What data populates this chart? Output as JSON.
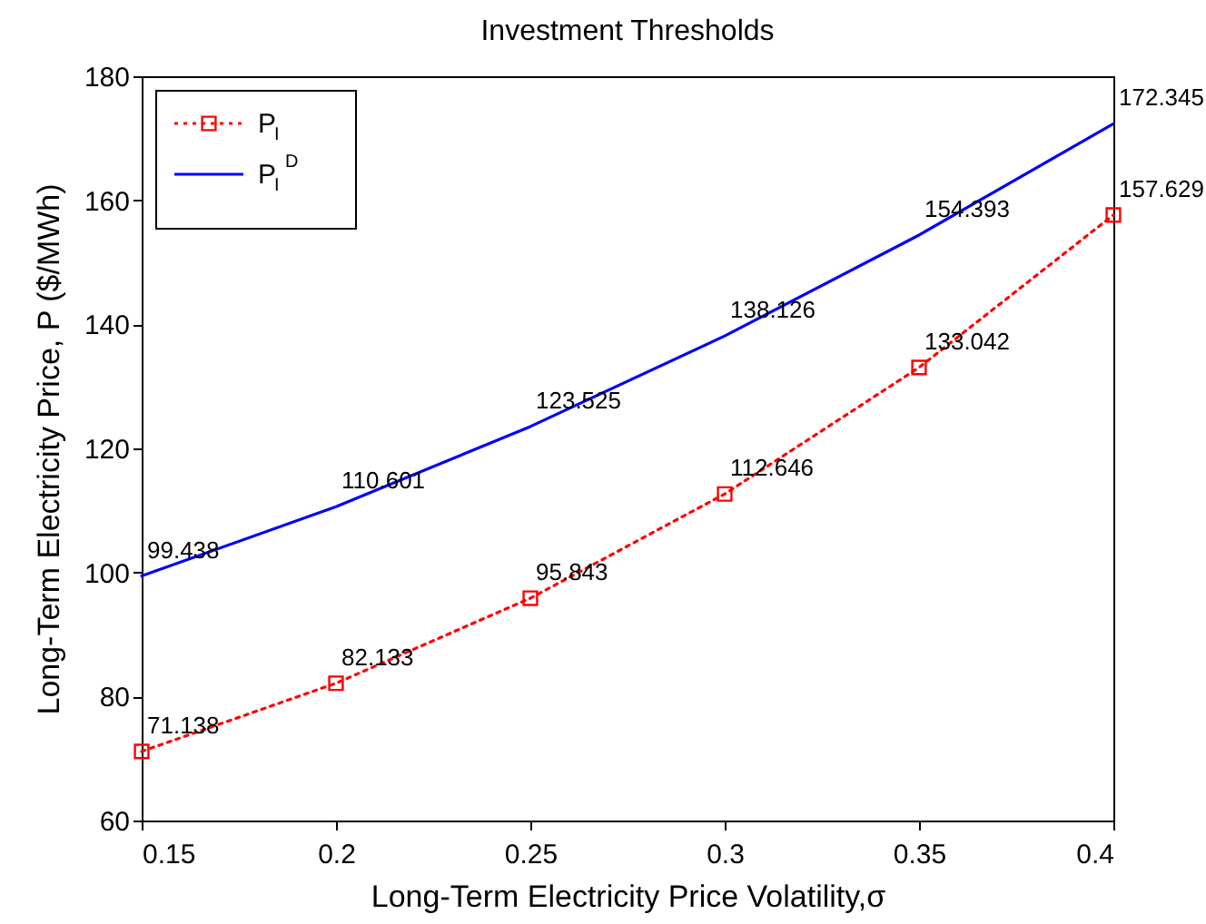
{
  "chart_data": {
    "type": "line",
    "title": "Investment Thresholds",
    "xlabel": "Long-Term Electricity Price Volatility,σ",
    "ylabel": "Long-Term Electricity Price, P ($/MWh)",
    "x": [
      0.15,
      0.2,
      0.25,
      0.3,
      0.35,
      0.4
    ],
    "series": [
      {
        "name": "P$_{I}$",
        "color": "#ff0000",
        "marker": "square",
        "line_style": "dotted",
        "values": [
          71.138,
          82.133,
          95.843,
          112.646,
          133.042,
          157.629
        ]
      },
      {
        "name": "P$_{I}$$^{D}$",
        "color": "#0000ff",
        "marker": "none",
        "line_style": "solid",
        "values": [
          99.438,
          110.601,
          123.525,
          138.126,
          154.393,
          172.345
        ]
      }
    ],
    "xlim": [
      0.15,
      0.4
    ],
    "xticks": [
      0.15,
      0.2,
      0.25,
      0.3,
      0.35,
      0.4
    ],
    "ylim": [
      60,
      180
    ],
    "yticks": [
      60,
      80,
      100,
      120,
      140,
      160,
      180
    ],
    "data_labels": true,
    "legend": "top left",
    "grid": false
  }
}
